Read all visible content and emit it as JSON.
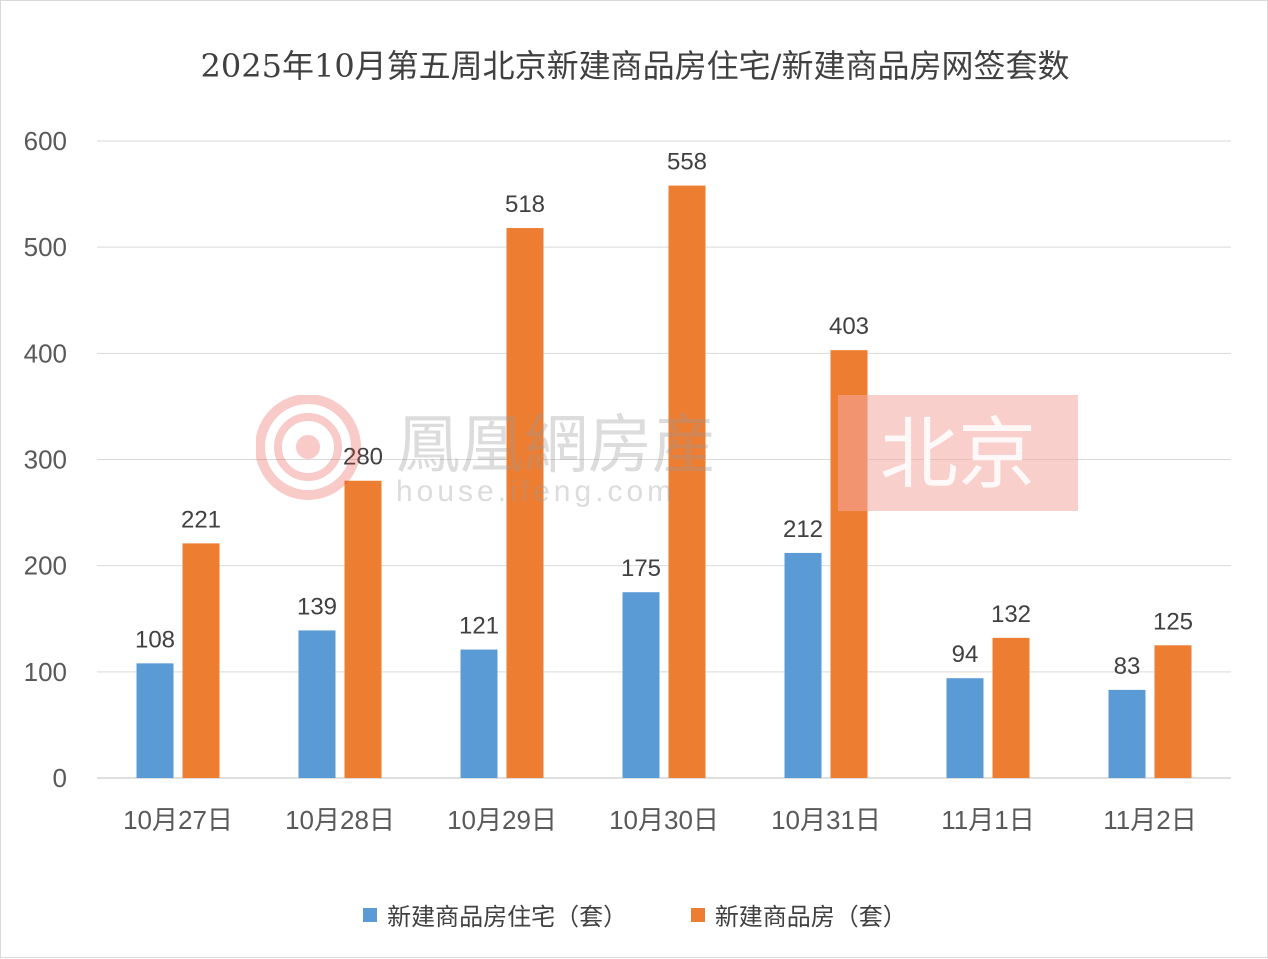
{
  "chart_data": {
    "type": "bar",
    "title": "2025年10月第五周北京新建商品房住宅/新建商品房网签套数",
    "categories": [
      "10月27日",
      "10月28日",
      "10月29日",
      "10月30日",
      "10月31日",
      "11月1日",
      "11月2日"
    ],
    "series": [
      {
        "name": "新建商品房住宅（套）",
        "color": "#5B9BD5",
        "values": [
          108,
          139,
          121,
          175,
          212,
          94,
          83
        ]
      },
      {
        "name": "新建商品房（套）",
        "color": "#ED7D31",
        "values": [
          221,
          280,
          518,
          558,
          403,
          132,
          125
        ]
      }
    ],
    "ylim": [
      0,
      600
    ],
    "yticks": [
      0,
      100,
      200,
      300,
      400,
      500,
      600
    ],
    "grid": true,
    "legend_position": "bottom",
    "data_labels": true
  },
  "watermark": {
    "brand": "鳳凰網房産",
    "url": "house.ifeng.com",
    "city": "北京"
  }
}
